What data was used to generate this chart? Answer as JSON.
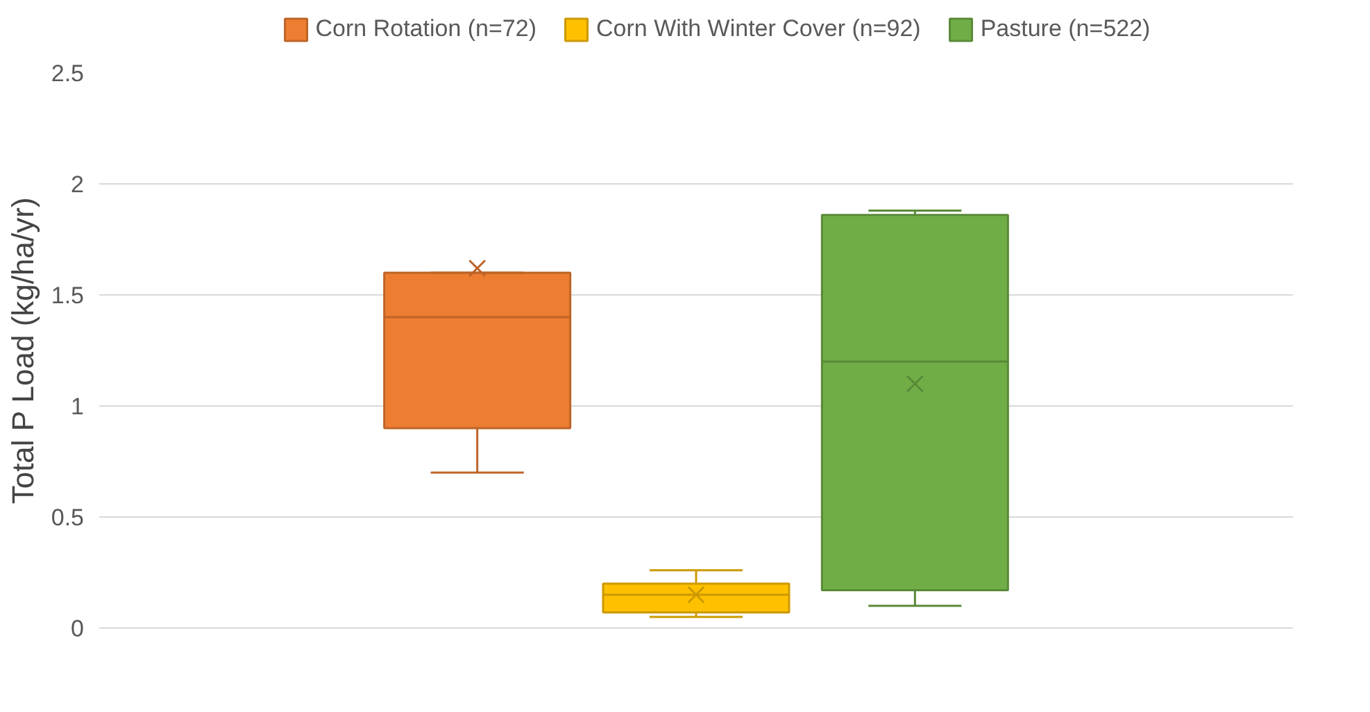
{
  "chart_data": {
    "type": "box",
    "categories": [
      null
    ],
    "ylabel": "Total P Load (kg/ha/yr)",
    "ylim": [
      0,
      2.5
    ],
    "yticks": [
      0,
      0.5,
      1,
      1.5,
      2,
      2.5
    ],
    "grid": "y",
    "legend": "top",
    "series": [
      {
        "name": "Corn Rotation (n=72)",
        "color": "#ed7d31",
        "boxes": [
          {
            "low": 0.7,
            "q1": 0.9,
            "median": 1.4,
            "q3": 1.6,
            "high": 1.6,
            "mean": 1.62
          }
        ]
      },
      {
        "name": "Corn With Winter Cover (n=92)",
        "color": "#ffc000",
        "boxes": [
          {
            "low": 0.05,
            "q1": 0.07,
            "median": 0.15,
            "q3": 0.2,
            "high": 0.26,
            "mean": 0.15
          }
        ]
      },
      {
        "name": "Pasture (n=522)",
        "color": "#70ad47",
        "boxes": [
          {
            "low": 0.1,
            "q1": 0.17,
            "median": 1.2,
            "q3": 1.86,
            "high": 1.88,
            "mean": 1.1
          }
        ]
      }
    ]
  }
}
